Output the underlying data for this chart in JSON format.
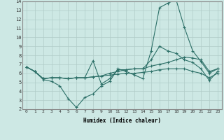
{
  "xlabel": "Humidex (Indice chaleur)",
  "background_color": "#cde8e4",
  "line_color": "#2d7068",
  "grid_color": "#b0ccc8",
  "xlim": [
    -0.5,
    23.5
  ],
  "ylim": [
    2,
    14
  ],
  "xticks": [
    0,
    1,
    2,
    3,
    4,
    5,
    6,
    7,
    8,
    9,
    10,
    11,
    12,
    13,
    14,
    15,
    16,
    17,
    18,
    19,
    20,
    21,
    22,
    23
  ],
  "yticks": [
    2,
    3,
    4,
    5,
    6,
    7,
    8,
    9,
    10,
    11,
    12,
    13,
    14
  ],
  "series": [
    [
      6.7,
      6.2,
      5.3,
      5.1,
      4.6,
      3.2,
      2.2,
      3.3,
      3.7,
      4.6,
      5.1,
      6.5,
      6.2,
      5.8,
      5.4,
      8.5,
      13.3,
      13.8,
      14.2,
      11.1,
      8.5,
      7.3,
      6.0,
      6.5
    ],
    [
      6.7,
      6.2,
      5.4,
      5.5,
      5.5,
      5.4,
      5.5,
      5.5,
      7.4,
      4.8,
      5.4,
      6.4,
      6.4,
      6.5,
      6.5,
      7.5,
      9.0,
      8.5,
      8.2,
      7.5,
      7.2,
      6.5,
      5.2,
      6.2
    ],
    [
      6.7,
      6.2,
      5.4,
      5.5,
      5.5,
      5.4,
      5.5,
      5.5,
      5.6,
      5.7,
      6.0,
      6.2,
      6.4,
      6.5,
      6.5,
      6.8,
      7.0,
      7.2,
      7.5,
      7.8,
      7.7,
      7.5,
      6.2,
      6.5
    ],
    [
      6.7,
      6.2,
      5.4,
      5.5,
      5.5,
      5.4,
      5.5,
      5.5,
      5.6,
      5.7,
      5.8,
      5.9,
      6.0,
      6.0,
      6.1,
      6.2,
      6.4,
      6.5,
      6.5,
      6.5,
      6.2,
      6.0,
      5.5,
      6.0
    ]
  ]
}
